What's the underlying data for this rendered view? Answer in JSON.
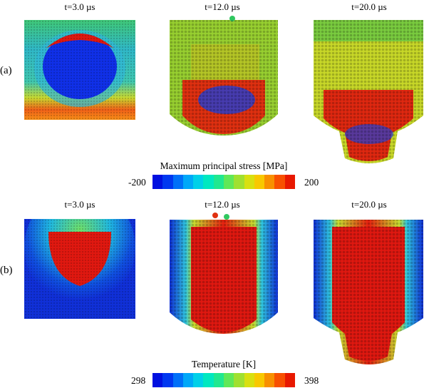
{
  "row_a": {
    "label": "(a)",
    "times": [
      "t=3.0 µs",
      "t=12.0 µs",
      "t=20.0 µs"
    ],
    "colorbar": {
      "title": "Maximum principal stress [MPa]",
      "min": "-200",
      "max": "200"
    }
  },
  "row_b": {
    "label": "(b)",
    "times": [
      "t=3.0 µs",
      "t=12.0 µs",
      "t=20.0 µs"
    ],
    "colorbar": {
      "title": "Temperature [K]",
      "min": "298",
      "max": "398"
    }
  },
  "colors": {
    "jet": [
      "#0010e0",
      "#0038f0",
      "#0070f8",
      "#00a8f8",
      "#00d0e8",
      "#00e8c0",
      "#20e890",
      "#60e858",
      "#a0e030",
      "#d8e010",
      "#f8c800",
      "#f89000",
      "#f85000",
      "#e81800"
    ]
  }
}
